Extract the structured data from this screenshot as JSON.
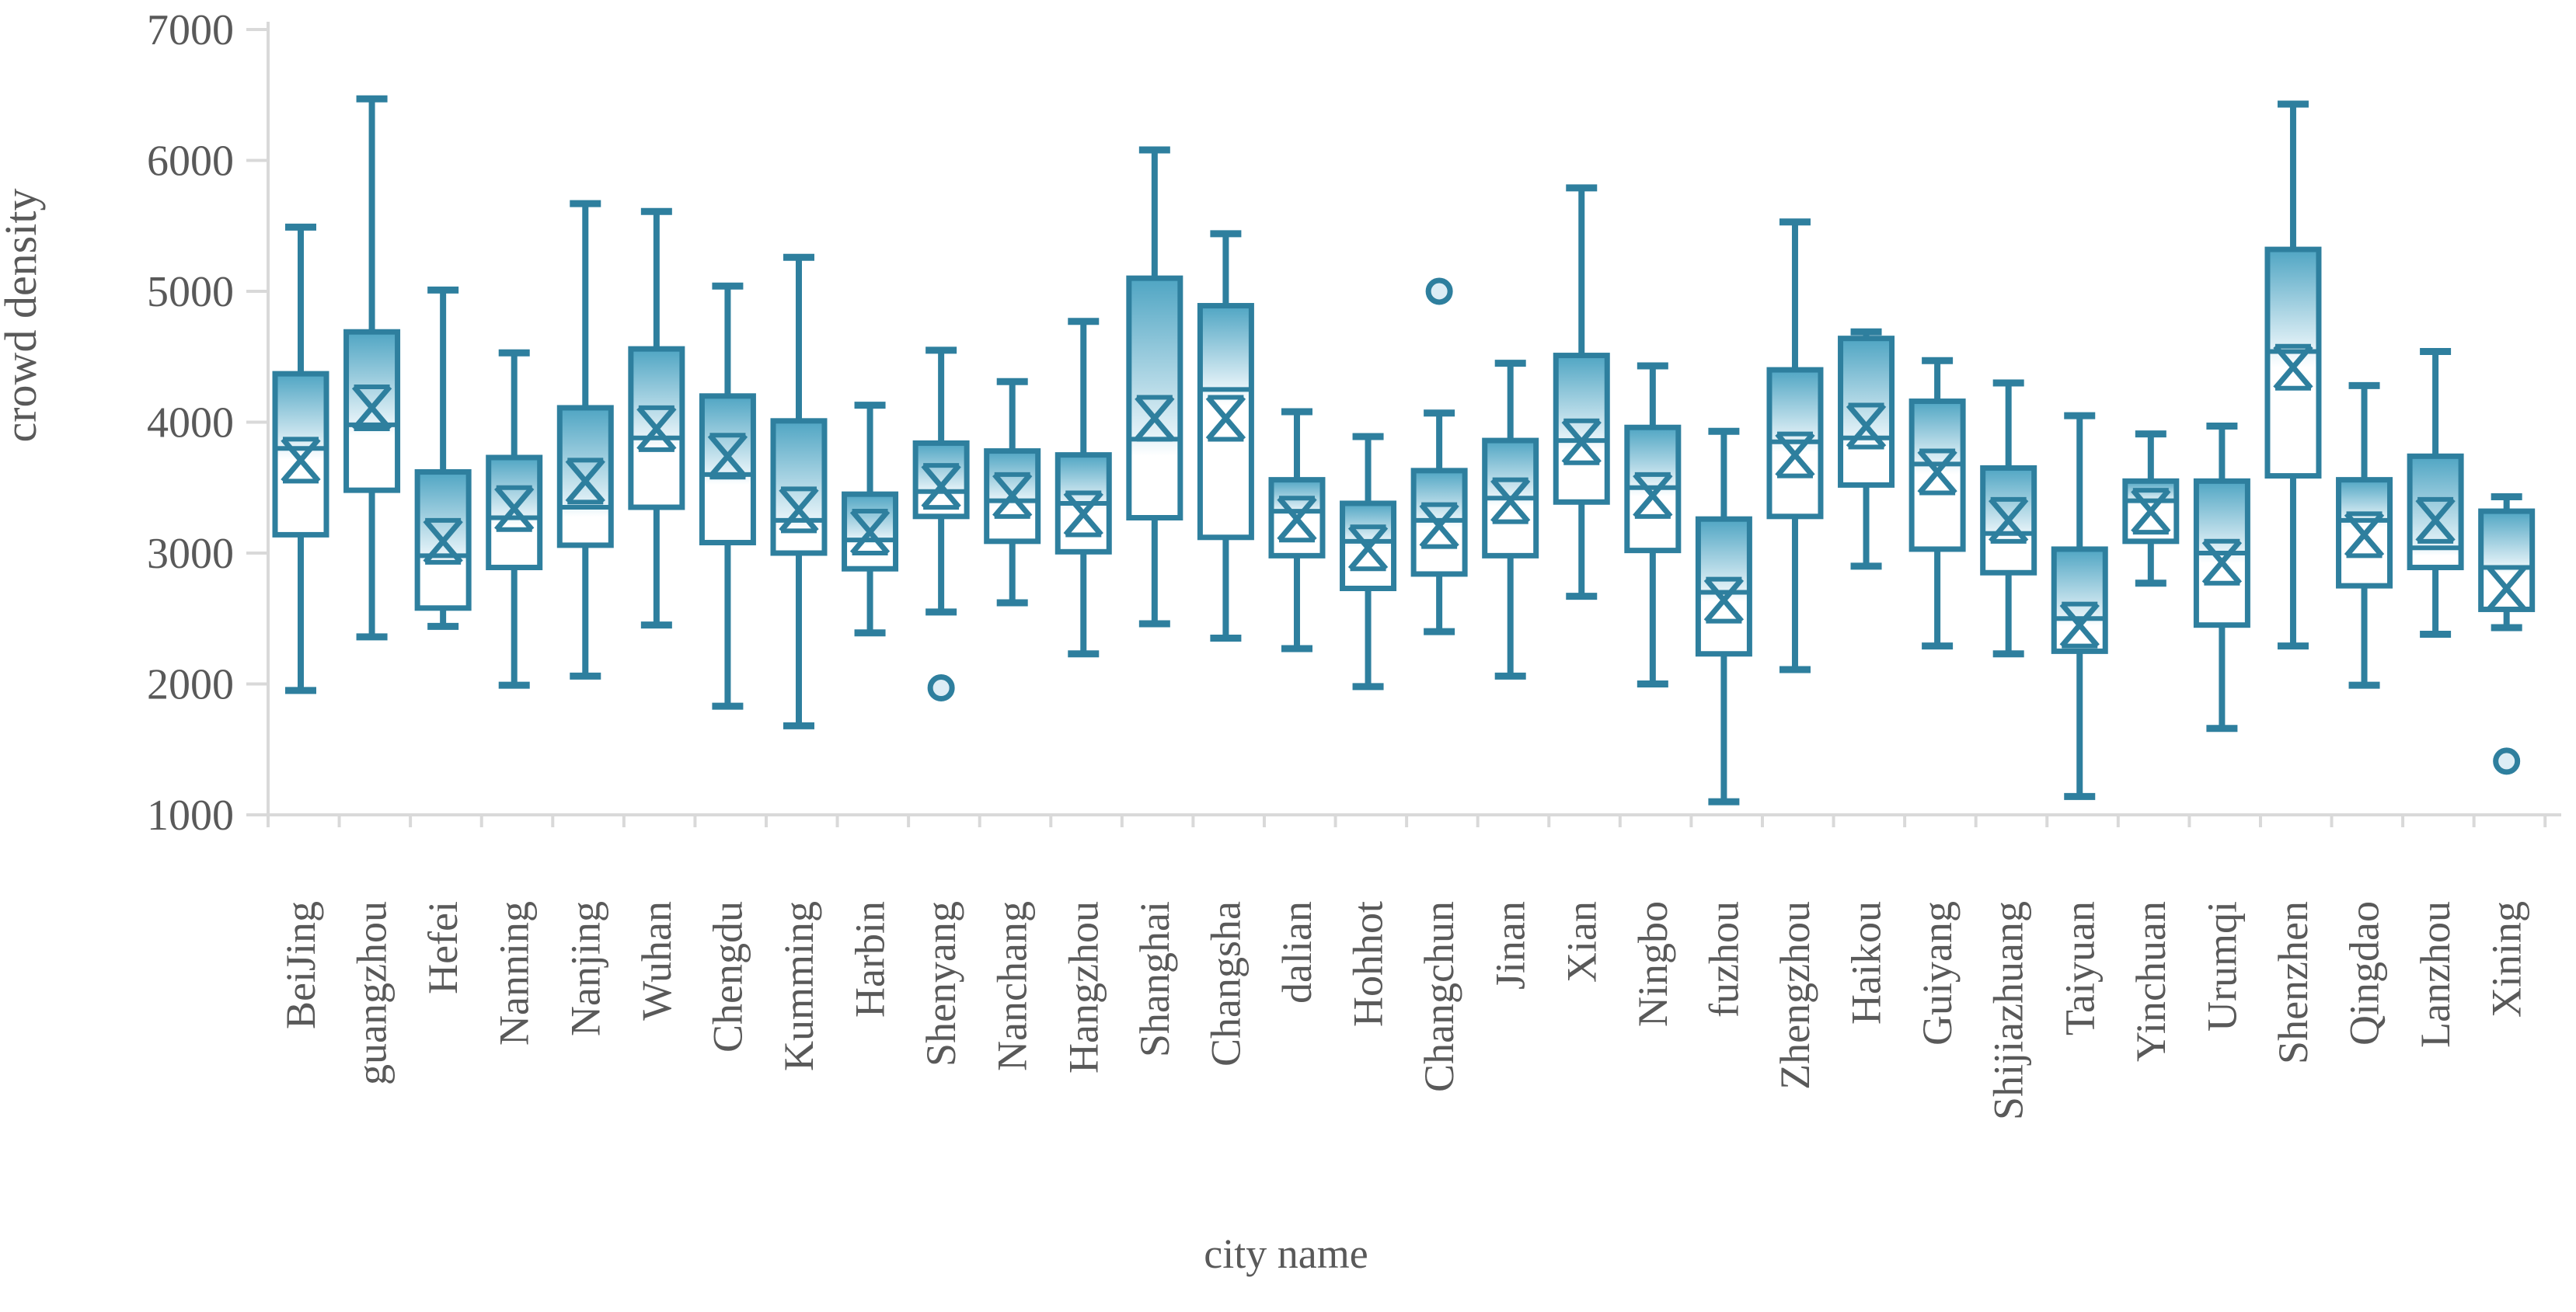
{
  "chart_data": {
    "type": "box",
    "title": "",
    "xlabel": "city name",
    "ylabel": "crowd density",
    "ylim": [
      1000,
      7000
    ],
    "yticks": [
      7000,
      6000,
      5000,
      4000,
      3000,
      2000,
      1000
    ],
    "grid": false,
    "legend": null,
    "colors": {
      "box_stroke": "#2e7f9e",
      "fill_top": "#4fa5c3",
      "fill_fade": "#e8f4f9",
      "fill_bottom": "#ffffff",
      "outlier_fill": "#dcedf5",
      "axis": "#d9d9d9",
      "text": "#595959"
    },
    "categories": [
      "BeiJing",
      "guangzhou",
      "Hefei",
      "Nanning",
      "Nanjing",
      "Wuhan",
      "Chengdu",
      "Kumming",
      "Harbin",
      "Shenyang",
      "Nanchang",
      "Hangzhou",
      "Shanghai",
      "Changsha",
      "dalian",
      "Hohhot",
      "Changchun",
      "Jinan",
      "Xian",
      "Ningbo",
      "fuzhou",
      "Zhengzhou",
      "Haikou",
      "Guiyang",
      "Shijiazhuang",
      "Taiyuan",
      "Yinchuan",
      "Urumqi",
      "Shenzhen",
      "Qingdao",
      "Lanzhou",
      "Xining"
    ],
    "series": [
      {
        "name": "BeiJing",
        "low": 1950,
        "q1": 3140,
        "median": 3800,
        "mean": 3710,
        "q3": 4370,
        "high": 5490,
        "outliers": []
      },
      {
        "name": "guangzhou",
        "low": 2360,
        "q1": 3480,
        "median": 3980,
        "mean": 4110,
        "q3": 4690,
        "high": 6470,
        "outliers": []
      },
      {
        "name": "Hefei",
        "low": 2440,
        "q1": 2580,
        "median": 2980,
        "mean": 3090,
        "q3": 3620,
        "high": 5010,
        "outliers": []
      },
      {
        "name": "Nanning",
        "low": 1990,
        "q1": 2890,
        "median": 3270,
        "mean": 3340,
        "q3": 3730,
        "high": 4530,
        "outliers": []
      },
      {
        "name": "Nanjing",
        "low": 2060,
        "q1": 3060,
        "median": 3350,
        "mean": 3550,
        "q3": 4110,
        "high": 5670,
        "outliers": []
      },
      {
        "name": "Wuhan",
        "low": 2450,
        "q1": 3350,
        "median": 3880,
        "mean": 3950,
        "q3": 4560,
        "high": 5610,
        "outliers": []
      },
      {
        "name": "Chengdu",
        "low": 1830,
        "q1": 3080,
        "median": 3600,
        "mean": 3740,
        "q3": 4200,
        "high": 5040,
        "outliers": []
      },
      {
        "name": "Kumming",
        "low": 1680,
        "q1": 3000,
        "median": 3250,
        "mean": 3330,
        "q3": 4010,
        "high": 5260,
        "outliers": []
      },
      {
        "name": "Harbin",
        "low": 2390,
        "q1": 2880,
        "median": 3100,
        "mean": 3160,
        "q3": 3450,
        "high": 4130,
        "outliers": []
      },
      {
        "name": "Shenyang",
        "low": 2550,
        "q1": 3280,
        "median": 3470,
        "mean": 3510,
        "q3": 3840,
        "high": 4550,
        "outliers": [
          1970
        ]
      },
      {
        "name": "Nanchang",
        "low": 2620,
        "q1": 3090,
        "median": 3400,
        "mean": 3440,
        "q3": 3780,
        "high": 4310,
        "outliers": []
      },
      {
        "name": "Hangzhou",
        "low": 2230,
        "q1": 3010,
        "median": 3380,
        "mean": 3300,
        "q3": 3750,
        "high": 4770,
        "outliers": []
      },
      {
        "name": "Shanghai",
        "low": 2460,
        "q1": 3270,
        "median": 3870,
        "mean": 4030,
        "q3": 5100,
        "high": 6080,
        "outliers": []
      },
      {
        "name": "Changsha",
        "low": 2350,
        "q1": 3120,
        "median": 4250,
        "mean": 4030,
        "q3": 4890,
        "high": 5440,
        "outliers": []
      },
      {
        "name": "dalian",
        "low": 2270,
        "q1": 2980,
        "median": 3320,
        "mean": 3260,
        "q3": 3560,
        "high": 4080,
        "outliers": []
      },
      {
        "name": "Hohhot",
        "low": 1980,
        "q1": 2730,
        "median": 3090,
        "mean": 3040,
        "q3": 3380,
        "high": 3890,
        "outliers": []
      },
      {
        "name": "Changchun",
        "low": 2400,
        "q1": 2840,
        "median": 3250,
        "mean": 3210,
        "q3": 3630,
        "high": 4070,
        "outliers": [
          5000
        ]
      },
      {
        "name": "Jinan",
        "low": 2060,
        "q1": 2980,
        "median": 3420,
        "mean": 3400,
        "q3": 3860,
        "high": 4450,
        "outliers": []
      },
      {
        "name": "Xian",
        "low": 2670,
        "q1": 3390,
        "median": 3860,
        "mean": 3850,
        "q3": 4510,
        "high": 5790,
        "outliers": []
      },
      {
        "name": "Ningbo",
        "low": 2000,
        "q1": 3020,
        "median": 3500,
        "mean": 3440,
        "q3": 3960,
        "high": 4430,
        "outliers": []
      },
      {
        "name": "fuzhou",
        "low": 1100,
        "q1": 2230,
        "median": 2700,
        "mean": 2640,
        "q3": 3260,
        "high": 3930,
        "outliers": []
      },
      {
        "name": "Zhengzhou",
        "low": 2110,
        "q1": 3280,
        "median": 3850,
        "mean": 3750,
        "q3": 4400,
        "high": 5530,
        "outliers": []
      },
      {
        "name": "Haikou",
        "low": 2900,
        "q1": 3520,
        "median": 3880,
        "mean": 3970,
        "q3": 4640,
        "high": 4690,
        "outliers": []
      },
      {
        "name": "Guiyang",
        "low": 2290,
        "q1": 3030,
        "median": 3680,
        "mean": 3620,
        "q3": 4160,
        "high": 4470,
        "outliers": []
      },
      {
        "name": "Shijiazhuang",
        "low": 2230,
        "q1": 2850,
        "median": 3150,
        "mean": 3250,
        "q3": 3650,
        "high": 4300,
        "outliers": []
      },
      {
        "name": "Taiyuan",
        "low": 1140,
        "q1": 2250,
        "median": 2500,
        "mean": 2450,
        "q3": 3030,
        "high": 4050,
        "outliers": []
      },
      {
        "name": "Yinchuan",
        "low": 2770,
        "q1": 3090,
        "median": 3400,
        "mean": 3320,
        "q3": 3550,
        "high": 3910,
        "outliers": []
      },
      {
        "name": "Urumqi",
        "low": 1660,
        "q1": 2450,
        "median": 3000,
        "mean": 2930,
        "q3": 3550,
        "high": 3970,
        "outliers": []
      },
      {
        "name": "Shenzhen",
        "low": 2290,
        "q1": 3590,
        "median": 4540,
        "mean": 4420,
        "q3": 5320,
        "high": 6430,
        "outliers": []
      },
      {
        "name": "Qingdao",
        "low": 1990,
        "q1": 2750,
        "median": 3250,
        "mean": 3140,
        "q3": 3560,
        "high": 4280,
        "outliers": []
      },
      {
        "name": "Lanzhou",
        "low": 2380,
        "q1": 2890,
        "median": 3040,
        "mean": 3250,
        "q3": 3740,
        "high": 4540,
        "outliers": []
      },
      {
        "name": "Xining",
        "low": 2430,
        "q1": 2570,
        "median": 2890,
        "mean": 2730,
        "q3": 3320,
        "high": 3430,
        "outliers": [
          1410
        ]
      }
    ]
  }
}
